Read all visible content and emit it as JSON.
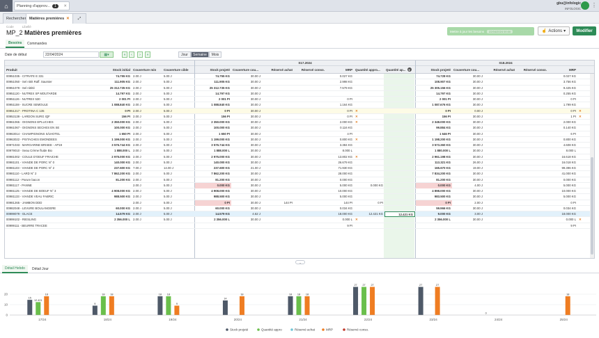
{
  "app": {
    "tab_title": "Planning d'approv...",
    "tab_badge": "1",
    "user_name": "gbu@infologic",
    "user_company": "INFOLOGIC"
  },
  "tabs": [
    {
      "label": "Rechercher"
    },
    {
      "label": "Matières premières"
    }
  ],
  "header": {
    "code_label": "Code",
    "code": "MP_2",
    "libelle_label": "Libellé",
    "title": "Matières premières",
    "update_button": "Mettre à jour les besoins",
    "update_pill": "22/04/2024 00:00",
    "actions_button": "Actions",
    "modify_button": "Modifier"
  },
  "subtabs": [
    {
      "label": "Besoins"
    },
    {
      "label": "Commandes"
    }
  ],
  "controls": {
    "date_label": "Date de début",
    "date_value": "22/04/2024",
    "nav": [
      "«",
      "‹",
      "›",
      "»"
    ],
    "views": [
      "Jour",
      "Semaine",
      "Mois"
    ]
  },
  "grid": {
    "week1": "S17.2024",
    "week2": "S18.2024",
    "columns_left": [
      "Produit",
      "Stock initial",
      "Couverture min",
      "Couverture cible"
    ],
    "columns_week1": [
      "Stock projeté",
      "Couverture cou...",
      "Réservé achat",
      "Réservé conso.",
      "MRP",
      "Quantité appro...",
      "Quantité ap..."
    ],
    "columns_week2": [
      "Stock projeté",
      "Couverture cou...",
      "Réservé achat",
      "Réservé conso.",
      "MRP"
    ],
    "rows": [
      {
        "product": "00951035 - CITRATE E 331",
        "si": "74.755 KG",
        "cmin": "2.00 J",
        "ccib": "5.00 J",
        "sp": "74.755 KG",
        "cc": "30.00 J",
        "ra": "",
        "rc": "",
        "mrp": "0.027 KG",
        "qa": "",
        "x": "",
        "sp2": "74.728 KG",
        "cc2": "30.00 J",
        "mrp2": "0.027 KG",
        "x2": ""
      },
      {
        "product": "00951050 - Sel nitrit Raff. Saumier",
        "si": "111.905 KG",
        "cmin": "2.00 J",
        "ccib": "5.00 J",
        "sp": "111.905 KG",
        "cc": "30.00 J",
        "ra": "",
        "rc": "",
        "mrp": "2.998 KG",
        "qa": "",
        "x": "",
        "sp2": "108.907 KG",
        "cc2": "30.00 J",
        "mrp2": "3.756 KG",
        "x2": ""
      },
      {
        "product": "00951078 - Sel nitrité",
        "si": "25 312.735 KG",
        "cmin": "2.00 J",
        "ccib": "5.00 J",
        "sp": "25 312.735 KG",
        "cc": "30.00 J",
        "ra": "",
        "rc": "",
        "mrp": "7.579 KG",
        "qa": "",
        "x": "",
        "sp2": "25 305.156 KG",
        "cc2": "30.00 J",
        "mrp2": "9.425 KG",
        "x2": ""
      },
      {
        "product": "00951120 - NUTREX SP MOUTARDE",
        "si": "14.797 KG",
        "cmin": "2.00 J",
        "ccib": "5.00 J",
        "sp": "14.797 KG",
        "cc": "30.00 J",
        "ra": "",
        "rc": "",
        "mrp": "",
        "qa": "",
        "x": "",
        "sp2": "14.797 KG",
        "cc2": "30.00 J",
        "mrp2": "0.255 KG",
        "x2": ""
      },
      {
        "product": "00951126 - NUTREX 530",
        "si": "2 001 PI",
        "cmin": "2.00 J",
        "ccib": "5.00 J",
        "sp": "2 001 PI",
        "cc": "30.00 J",
        "ra": "",
        "rc": "",
        "mrp": "0 PI",
        "qa": "",
        "x": "",
        "sp2": "2 001 PI",
        "cc2": "30.00 J",
        "mrp2": "0 PI",
        "x2": ""
      },
      {
        "product": "00951159 - SUCRE SEMOULE",
        "si": "1 088.840 KG",
        "cmin": "2.00 J",
        "ccib": "5.00 J",
        "sp": "1 088.840 KG",
        "cc": "30.00 J",
        "ra": "",
        "rc": "",
        "mrp": "1.164 KG",
        "qa": "",
        "x": "",
        "sp2": "1 087.676 KG",
        "cc2": "30.00 J",
        "mrp2": "1.799 KG",
        "x2": ""
      },
      {
        "product": "00951217 - PROTINA C 135",
        "si": "0 PI",
        "cmin": "2.00 J",
        "ccib": "5.00 J",
        "sp": "0 PI",
        "cc": "30.00 J",
        "ra": "",
        "rc": "",
        "mrp": "0 PI",
        "qa": "",
        "x": "✕",
        "sp2": "0 PI",
        "cc2": "0.00 J",
        "mrp2": "0 PI",
        "x2": "✕",
        "warn": true
      },
      {
        "product": "00953139 - LARDON SURG IQF",
        "si": "156 PI",
        "cmin": "2.00 J",
        "ccib": "5.00 J",
        "sp": "156 PI",
        "cc": "30.00 J",
        "ra": "",
        "rc": "",
        "mrp": "0 PI",
        "qa": "",
        "x": "✕",
        "sp2": "156 PI",
        "cc2": "30.00 J",
        "mrp2": "1 PI",
        "x2": "✕"
      },
      {
        "product": "00961065 - OIGNONS EPLUCHES",
        "si": "2 350.000 KG",
        "cmin": "2.00 J",
        "ccib": "5.00 J",
        "sp": "2 350.000 KG",
        "cc": "30.00 J",
        "ra": "",
        "rc": "",
        "mrp": "2.000 KG",
        "qa": "",
        "x": "✕",
        "sp2": "2 348.000 KG",
        "cc2": "30.00 J",
        "mrp2": "2.000 KG",
        "x2": ""
      },
      {
        "product": "00961067 - OIGNONS SECHES EN SE",
        "si": "100.000 KG",
        "cmin": "2.00 J",
        "ccib": "5.00 J",
        "sp": "100.000 KG",
        "cc": "30.00 J",
        "ra": "",
        "rc": "",
        "mrp": "0.116 KG",
        "qa": "",
        "x": "",
        "sp2": "99.884 KG",
        "cc2": "30.00 J",
        "mrp2": "0.140 KG",
        "x2": ""
      },
      {
        "product": "00963014 - CHAMPIGNONS S/1HOTEL",
        "si": "1 650 PI",
        "cmin": "2.00 J",
        "ccib": "5.00 J",
        "sp": "1 650 PI",
        "cc": "30.00 J",
        "ra": "",
        "rc": "",
        "mrp": "4 PI",
        "qa": "",
        "x": "",
        "sp2": "1 646 PI",
        "cc2": "30.00 J",
        "mrp2": "6 PI",
        "x2": ""
      },
      {
        "product": "00963022 - PISTACHES EMONDEES",
        "si": "1 199.000 KG",
        "cmin": "2.00 J",
        "ccib": "5.00 J",
        "sp": "1 199.000 KG",
        "cc": "30.00 J",
        "ra": "",
        "rc": "",
        "mrp": "0.800 KG",
        "qa": "",
        "x": "✕",
        "sp2": "1 198.200 KG",
        "cc2": "30.00 J",
        "mrp2": "0.800 KG",
        "x2": ""
      },
      {
        "product": "00971033 - MARGARINE BRISEE - AP19",
        "si": "3 576.744 KG",
        "cmin": "2.00 J",
        "ccib": "5.00 J",
        "sp": "3 576.744 KG",
        "cc": "30.00 J",
        "ra": "",
        "rc": "",
        "mrp": "3.384 KG",
        "qa": "",
        "x": "",
        "sp2": "3 573.360 KG",
        "cc2": "30.00 J",
        "mrp2": "4.608 KG",
        "x2": ""
      },
      {
        "product": "00979010 - Seau Crème fluide Bio",
        "si": "1 888.000 L",
        "cmin": "2.00 J",
        "ccib": "5.00 J",
        "sp": "1 888.000 L",
        "cc": "30.00 J",
        "ra": "",
        "rc": "",
        "mrp": "8.000 L",
        "qa": "",
        "x": "",
        "sp2": "1 880.000 L",
        "cc2": "30.00 J",
        "mrp2": "8.000 L",
        "x2": ""
      },
      {
        "product": "00981002 - COULE D'OEUF FRAICHE",
        "si": "2 975.000 KG",
        "cmin": "2.00 J",
        "ccib": "5.00 J",
        "sp": "2 975.000 KG",
        "cc": "30.00 J",
        "ra": "",
        "rc": "",
        "mrp": "13.802 KG",
        "qa": "",
        "x": "✕",
        "sp2": "2 961.198 KG",
        "cc2": "30.00 J",
        "mrp2": "16.618 KG",
        "x2": ""
      },
      {
        "product": "00981101 - VIANDE DE PORC N° 0",
        "si": "140.000 KG",
        "cmin": "2.00 J",
        "ccib": "5.00 J",
        "sp": "140.000 KG",
        "cc": "30.00 J",
        "ra": "",
        "rc": "",
        "mrp": "26.679 KG",
        "qa": "",
        "x": "",
        "sp2": "113.321 KG",
        "cc2": "26.00 J",
        "mrp2": "16.018 KG",
        "x2": ""
      },
      {
        "product": "00981103 - VIANDE DE PORC N° 2",
        "si": "237.600 KG",
        "cmin": "7.00 J",
        "ccib": "14.00 J",
        "sp": "237.600 KG",
        "cc": "21.00 J",
        "ra": "",
        "rc": "",
        "mrp": "71.930 KG",
        "qa": "",
        "x": "",
        "sp2": "165.670 KG",
        "cc2": "19.00 J",
        "mrp2": "99.396 KG",
        "x2": ""
      },
      {
        "product": "00981110 - LARD N° 2",
        "si": "7 862.200 KG",
        "cmin": "2.00 J",
        "ccib": "5.00 J",
        "sp": "7 862.200 KG",
        "cc": "30.00 J",
        "ra": "",
        "rc": "",
        "mrp": "28.000 KG",
        "qa": "",
        "x": "",
        "sp2": "7 834.200 KG",
        "cc2": "30.00 J",
        "mrp2": "41.000 KG",
        "x2": ""
      },
      {
        "product": "00981112 - Parure bacon",
        "si": "81.200 KG",
        "cmin": "2.00 J",
        "ccib": "5.00 J",
        "sp": "81.200 KG",
        "cc": "30.00 J",
        "ra": "",
        "rc": "",
        "mrp": "0.000 KG",
        "qa": "",
        "x": "",
        "sp2": "81.200 KG",
        "cc2": "30.00 J",
        "mrp2": "0.000 KG",
        "x2": ""
      },
      {
        "product": "00981117 - PANNE",
        "si": "",
        "cmin": "2.00 J",
        "ccib": "5.00 J",
        "sp": "0.000 KG",
        "cc": "30.00 J",
        "ra": "",
        "rc": "",
        "mrp": "5.000 KG",
        "qa": "0.000 KG",
        "x": "",
        "sp2": "0.000 KG",
        "cc2": "4.00 J",
        "mrp2": "5.000 KG",
        "x2": "",
        "neg": true
      },
      {
        "product": "00981125 - VIANDE DE BOEUF N° 3",
        "si": "4 908.000 KG",
        "cmin": "2.00 J",
        "ccib": "5.00 J",
        "sp": "4 908.000 KG",
        "cc": "30.00 J",
        "ra": "",
        "rc": "",
        "mrp": "10.000 KG",
        "qa": "",
        "x": "",
        "sp2": "4 898.000 KG",
        "cc2": "30.00 J",
        "mrp2": "10.000 KG",
        "x2": ""
      },
      {
        "product": "00981133 - VIANDE VEAU FABRIC",
        "si": "988.500 KG",
        "cmin": "2.00 J",
        "ccib": "5.00 J",
        "sp": "988.500 KG",
        "cc": "30.00 J",
        "ra": "",
        "rc": "",
        "mrp": "5.000 KG",
        "qa": "",
        "x": "",
        "sp2": "983.500 KG",
        "cc2": "30.00 J",
        "mrp2": "5.000 KG",
        "x2": ""
      },
      {
        "product": "00981265 - JAMBON DDD",
        "si": "",
        "cmin": "2.00 J",
        "ccib": "5.00 J",
        "sp": "0 PI",
        "cc": "30.00 J",
        "ra": "144 PI",
        "rc": "",
        "mrp": "144 PI",
        "qa": "0 PI",
        "x": "",
        "sp2": "0 PI",
        "cc2": "2.00 J",
        "mrp2": "0 PI",
        "x2": "",
        "neg": true
      },
      {
        "product": "00982048 - LEVURE BOULANGERE",
        "si": "60.000 KG",
        "cmin": "2.00 J",
        "ccib": "5.00 J",
        "sp": "60.000 KG",
        "cc": "30.00 J",
        "ra": "",
        "rc": "",
        "mrp": "0.034 KG",
        "qa": "",
        "x": "",
        "sp2": "59.966 KG",
        "cc2": "30.00 J",
        "mrp2": "0.034 KG",
        "x2": ""
      },
      {
        "product": "00999079 - GLACE",
        "si": "14.579 KG",
        "cmin": "2.00 J",
        "ccib": "5.00 J",
        "sp": "14.579 KG",
        "cc": "4.62 J",
        "ra": "",
        "rc": "",
        "mrp": "18.000 KG",
        "qa": "12.421 KG",
        "qa2": "12.421 KG",
        "x": "",
        "sp2": "9.000 KG",
        "cc2": "3.00 J",
        "mrp2": "18.000 KG",
        "x2": "",
        "sel": true
      },
      {
        "product": "00999102 - RIESLING",
        "si": "2 356.000 L",
        "cmin": "2.00 J",
        "ccib": "5.00 J",
        "sp": "2 356.000 L",
        "cc": "30.00 J",
        "ra": "",
        "rc": "",
        "mrp": "0.000 L",
        "qa": "",
        "x": "✕",
        "sp2": "2 356.000 L",
        "cc2": "30.00 J",
        "mrp2": "0.000 L",
        "x2": "✕"
      },
      {
        "product": "00999111 - BEURRE TRACEE",
        "si": "",
        "cmin": "",
        "ccib": "",
        "sp": "",
        "cc": "",
        "ra": "",
        "rc": "",
        "mrp": "9 PI",
        "qa": "",
        "x": "",
        "sp2": "",
        "cc2": "",
        "mrp2": "9 PI",
        "x2": ""
      }
    ]
  },
  "bottom_tabs": [
    {
      "label": "Détail Hebdo"
    },
    {
      "label": "Détail Jour"
    }
  ],
  "chart_data": {
    "type": "bar",
    "categories": [
      "17/24",
      "18/24",
      "19/24",
      "20/24",
      "21/24",
      "22/24",
      "23/24",
      "24/24",
      "25/24"
    ],
    "ylim": [
      0,
      30
    ],
    "yticks": [
      0,
      10,
      20
    ],
    "series": [
      {
        "name": "Stock projeté",
        "color": "#4e5968",
        "values": [
          14.579,
          9,
          18,
          14,
          18,
          27,
          27,
          0,
          0
        ]
      },
      {
        "name": "Quantité appro",
        "color": "#6abf4b",
        "values": [
          12.421,
          18,
          18,
          0,
          18,
          27,
          0,
          0,
          0
        ]
      },
      {
        "name": "Réservé achat",
        "color": "#6fc6d6",
        "values": [
          0,
          0,
          0,
          0,
          0,
          0,
          0,
          0,
          0
        ]
      },
      {
        "name": "MRP",
        "color": "#ef7d22",
        "values": [
          18,
          18,
          9,
          18,
          18,
          27,
          27,
          0,
          18
        ]
      },
      {
        "name": "Réservé conso.",
        "color": "#c0392b",
        "values": [
          0,
          0,
          0,
          0,
          0,
          0,
          0,
          0,
          0
        ]
      }
    ],
    "data_labels": [
      [
        "15",
        "12.421",
        "18"
      ],
      [
        "9",
        "18",
        "18"
      ],
      [
        "18",
        "18",
        "9"
      ],
      [
        "14",
        "",
        "18"
      ],
      [
        "18",
        "18",
        "18"
      ],
      [
        "27",
        "27",
        "27"
      ],
      [
        "27",
        "",
        "27"
      ],
      [
        "0",
        "",
        ""
      ],
      [
        "",
        "",
        "18"
      ]
    ],
    "legend_position": "bottom"
  }
}
